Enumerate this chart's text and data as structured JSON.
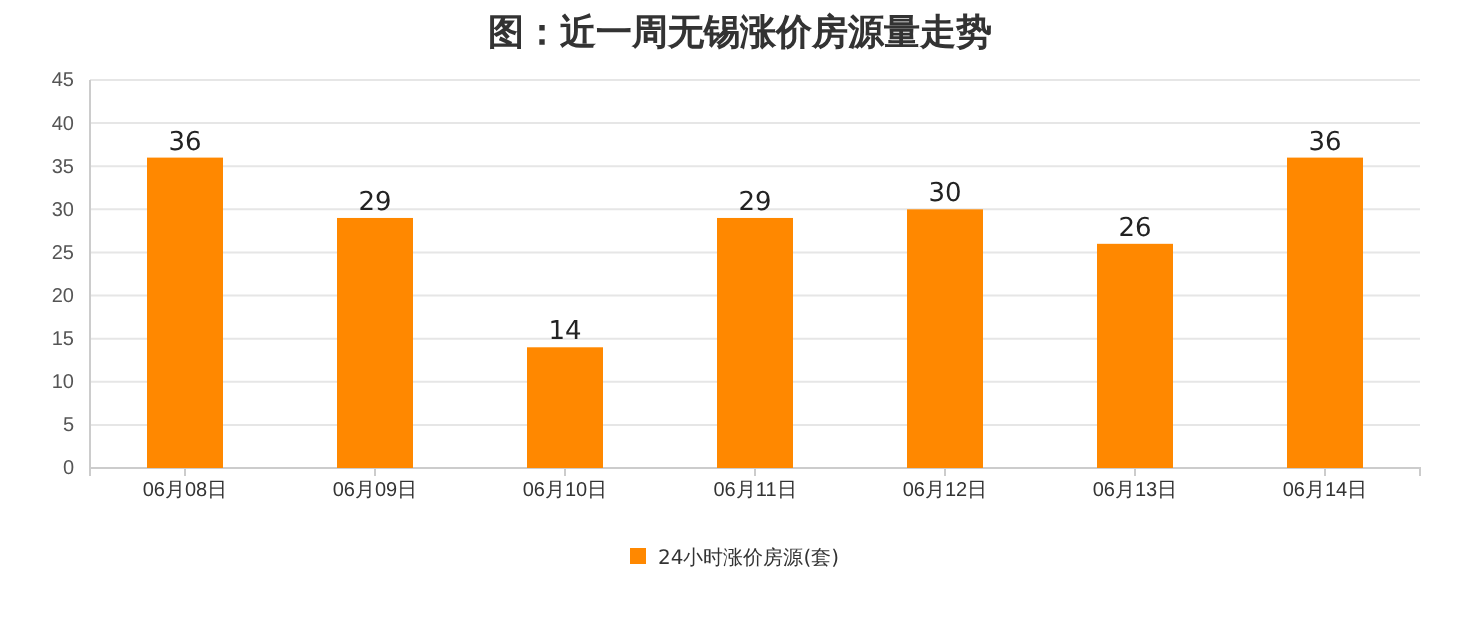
{
  "chart_data": {
    "type": "bar",
    "title": "图：近一周无锡涨价房源量走势",
    "categories": [
      "06月08日",
      "06月09日",
      "06月10日",
      "06月11日",
      "06月12日",
      "06月13日",
      "06月14日"
    ],
    "series": [
      {
        "name": "24小时涨价房源(套)",
        "color": "#ff8800",
        "values": [
          36,
          29,
          14,
          29,
          30,
          26,
          36
        ]
      }
    ],
    "ylim": [
      0,
      45
    ],
    "yticks": [
      0,
      5,
      10,
      15,
      20,
      25,
      30,
      35,
      40,
      45
    ],
    "grid": "y",
    "legend": "bottom",
    "data_labels": true
  }
}
